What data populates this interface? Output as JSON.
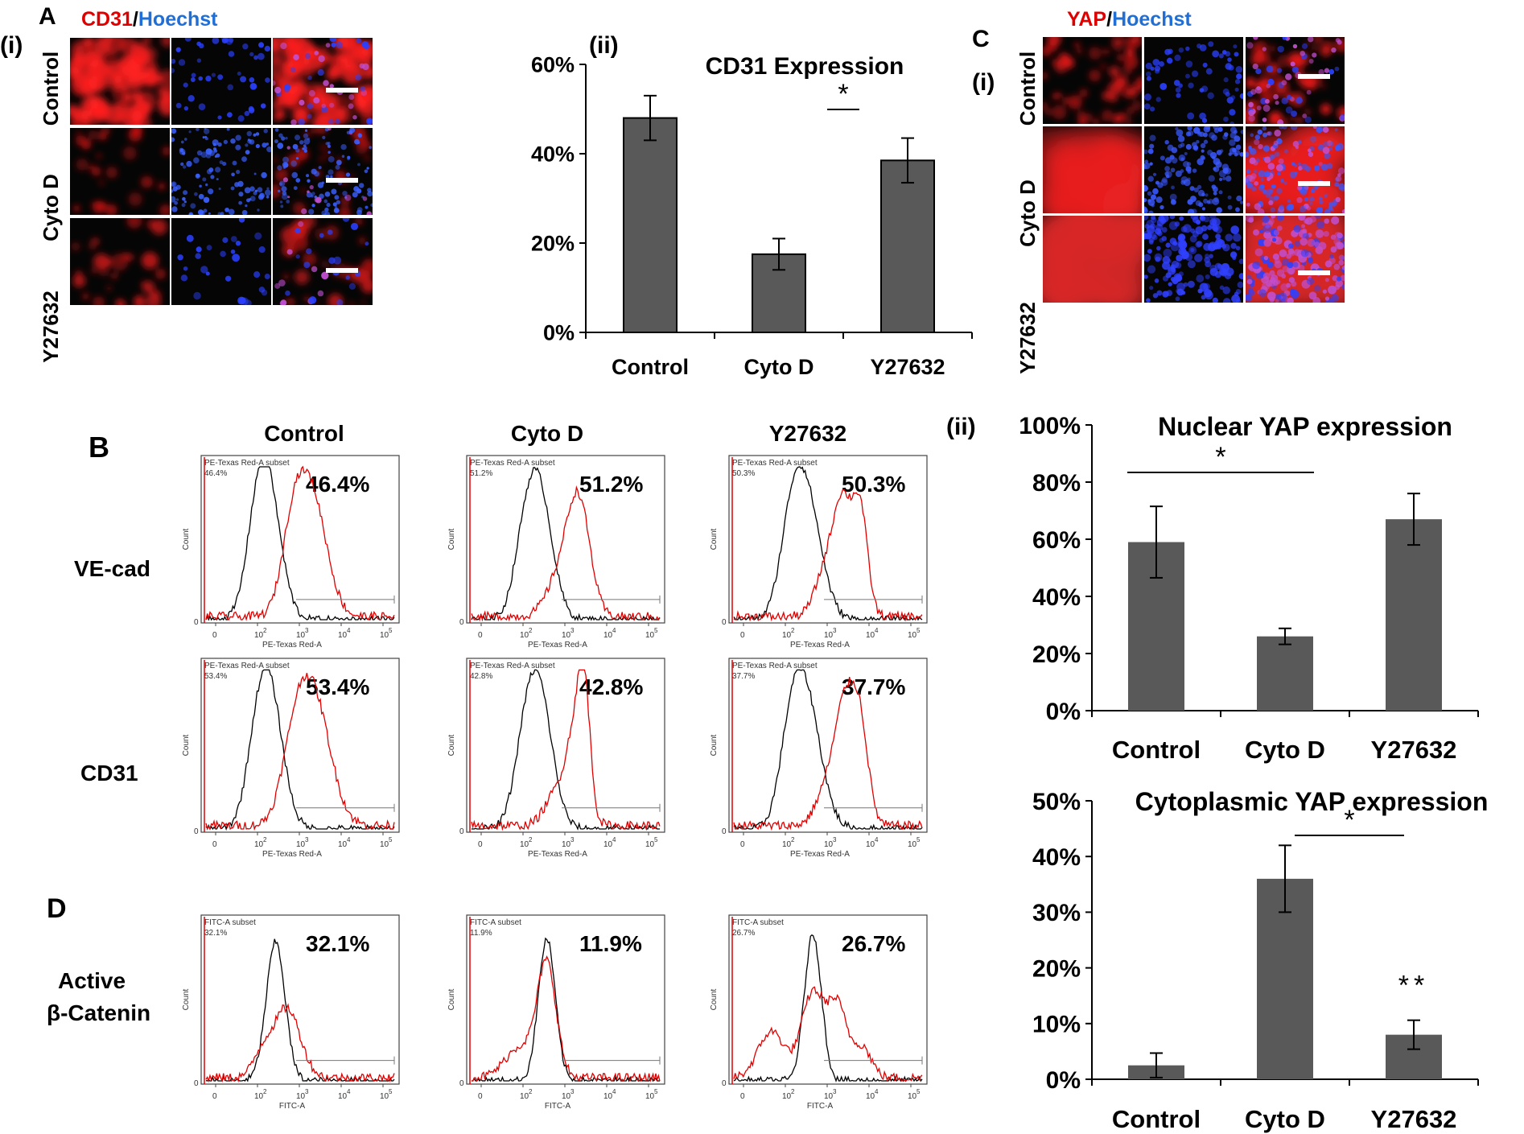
{
  "colors": {
    "bar": "#595959",
    "red": "#e00000",
    "blue": "#1f6fd6",
    "black": "#000000",
    "panel_bg": "#050505"
  },
  "panel_letters": {
    "A": "A",
    "B": "B",
    "C": "C",
    "D": "D"
  },
  "sub_labels": {
    "a_i": "(i)",
    "a_ii": "(ii)",
    "c_i": "(i)",
    "c_ii": "(ii)"
  },
  "micro_a": {
    "stain_red": "CD31",
    "sep": "/",
    "stain_blue": "Hoechst",
    "rows": [
      "Control",
      "Cyto D",
      "Y27632"
    ]
  },
  "micro_c": {
    "stain_red": "YAP",
    "sep": "/",
    "stain_blue": "Hoechst",
    "rows": [
      "Control",
      "Cyto D",
      "Y27632"
    ]
  },
  "flow": {
    "columns": [
      "Control",
      "Cyto D",
      "Y27632"
    ],
    "rows": [
      {
        "label": "VE-cad",
        "gate": "PE-Texas Red-A subset",
        "axis": "PE-Texas Red-A",
        "values": [
          "46.4%",
          "51.2%",
          "50.3%"
        ]
      },
      {
        "label": "CD31",
        "gate": "PE-Texas Red-A subset",
        "axis": "PE-Texas Red-A",
        "values": [
          "53.4%",
          "42.8%",
          "37.7%"
        ]
      }
    ],
    "d_row": {
      "label_line1": "Active",
      "label_line2": "β-Catenin",
      "gate": "FITC-A subset",
      "axis": "FITC-A",
      "values": [
        "32.1%",
        "11.9%",
        "26.7%"
      ]
    },
    "count_label": "Count",
    "tick_labels": [
      "0",
      "10",
      "10",
      "10",
      "10"
    ],
    "tick_exps": [
      "",
      "2",
      "3",
      "4",
      "5"
    ],
    "baseline_label": "0"
  },
  "chart_data": [
    {
      "id": "cd31",
      "type": "bar",
      "title": "CD31 Expression",
      "categories": [
        "Control",
        "Cyto D",
        "Y27632"
      ],
      "values": [
        48,
        17.5,
        38.5
      ],
      "errors": [
        5,
        3.5,
        5
      ],
      "ylim": [
        0,
        60
      ],
      "yticks": [
        "0%",
        "20%",
        "40%",
        "60%"
      ],
      "xlabel": "",
      "ylabel": "",
      "significance": [
        {
          "from": 1,
          "to": 2,
          "label": "*"
        }
      ],
      "annotations": []
    },
    {
      "id": "nuclear_yap",
      "type": "bar",
      "title": "Nuclear YAP expression",
      "categories": [
        "Control",
        "Cyto D",
        "Y27632"
      ],
      "values": [
        59,
        26,
        67
      ],
      "errors": [
        12.5,
        2.8,
        9
      ],
      "ylim": [
        0,
        100
      ],
      "yticks": [
        "0%",
        "20%",
        "40%",
        "60%",
        "80%",
        "100%"
      ],
      "xlabel": "",
      "ylabel": "",
      "significance": [
        {
          "from": 0,
          "to": 1,
          "label": "*"
        }
      ],
      "annotations": []
    },
    {
      "id": "cyto_yap",
      "type": "bar",
      "title": "Cytoplasmic YAP expression",
      "categories": [
        "Control",
        "Cyto D",
        "Y27632"
      ],
      "values": [
        2.5,
        36,
        8
      ],
      "errors": [
        2.2,
        6,
        2.6
      ],
      "ylim": [
        0,
        50
      ],
      "yticks": [
        "0%",
        "10%",
        "20%",
        "30%",
        "40%",
        "50%"
      ],
      "xlabel": "",
      "ylabel": "",
      "significance": [
        {
          "from": 1,
          "to": 2,
          "label": "*"
        }
      ],
      "annotations": [
        {
          "category": 2,
          "label": "**"
        }
      ]
    }
  ]
}
